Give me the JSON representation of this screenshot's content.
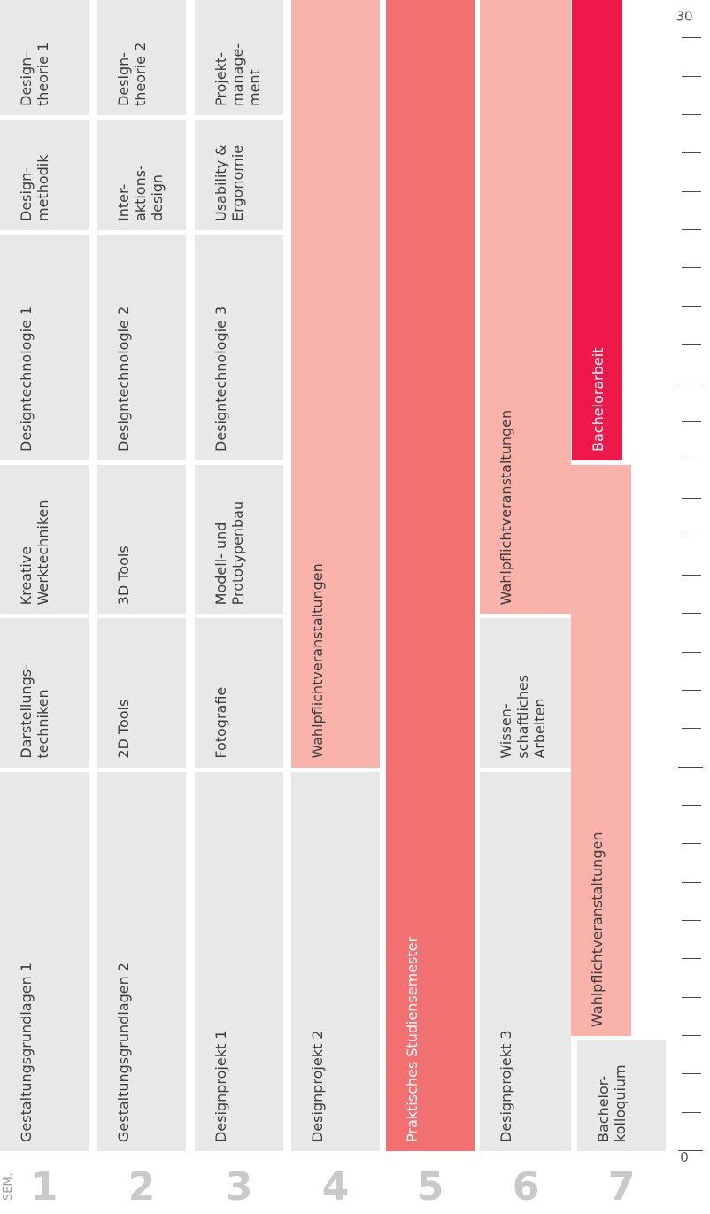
{
  "header": {
    "sem_label": "SEM."
  },
  "semesters": [
    {
      "num": "1",
      "modules": [
        {
          "label": "Gestaltungsgrundlagen 1",
          "style": "grey"
        },
        {
          "label": "Darstellungs-\ntechniken",
          "style": "grey"
        },
        {
          "label": "Kreative\nWerktechniken",
          "style": "grey"
        },
        {
          "label": "Designtechnologie 1",
          "style": "grey"
        },
        {
          "label": "Design-\nmethodik",
          "style": "grey"
        },
        {
          "label": "Design-\ntheorie 1",
          "style": "grey"
        }
      ]
    },
    {
      "num": "2",
      "modules": [
        {
          "label": "Gestaltungsgrundlagen 2",
          "style": "grey"
        },
        {
          "label": "2D Tools",
          "style": "grey"
        },
        {
          "label": "3D Tools",
          "style": "grey"
        },
        {
          "label": "Designtechnologie 2",
          "style": "grey"
        },
        {
          "label": "Inter-\naktions-\ndesign",
          "style": "grey"
        },
        {
          "label": "Design-\ntheorie 2",
          "style": "grey"
        }
      ]
    },
    {
      "num": "3",
      "modules": [
        {
          "label": "Designprojekt 1",
          "style": "grey"
        },
        {
          "label": "Fotografie",
          "style": "grey"
        },
        {
          "label": "Modell- und\nPrototypenbau",
          "style": "grey"
        },
        {
          "label": "Designtechnologie 3",
          "style": "grey"
        },
        {
          "label": "Usability &\nErgonomie",
          "style": "grey"
        },
        {
          "label": "Projekt-\nmanage-\nment",
          "style": "grey"
        }
      ]
    },
    {
      "num": "4",
      "modules": [
        {
          "label": "Designprojekt 2",
          "style": "grey"
        },
        {
          "label": "Wahlpflichtveranstaltungen",
          "style": "pink"
        }
      ]
    },
    {
      "num": "5",
      "modules": [
        {
          "label": "Praktisches Studiensemester",
          "style": "red"
        }
      ]
    },
    {
      "num": "6",
      "modules": [
        {
          "label": "Designprojekt 3",
          "style": "grey"
        },
        {
          "label": "Wissen-\nschaftliches\nArbeiten",
          "style": "grey"
        },
        {
          "label": "Wahlpflichtveranstaltungen",
          "style": "pink"
        }
      ]
    },
    {
      "num": "7",
      "modules": [
        {
          "label": "Bachelor-\nkolloquium",
          "style": "grey"
        },
        {
          "label": "Wahlpflichtveranstaltungen",
          "style": "pink"
        },
        {
          "label": "Bachelorarbeit",
          "style": "crimson"
        }
      ]
    }
  ],
  "chart_data": {
    "type": "table",
    "axis": {
      "min": 0,
      "max": 30,
      "labels": [
        "0",
        "30"
      ]
    },
    "rows": [
      {
        "semester": 1,
        "spans": [
          [
            0,
            10
          ],
          [
            10,
            14
          ],
          [
            14,
            18
          ],
          [
            18,
            24
          ],
          [
            24,
            27
          ],
          [
            27,
            30
          ]
        ]
      },
      {
        "semester": 2,
        "spans": [
          [
            0,
            10
          ],
          [
            10,
            14
          ],
          [
            14,
            18
          ],
          [
            18,
            24
          ],
          [
            24,
            27
          ],
          [
            27,
            30
          ]
        ]
      },
      {
        "semester": 3,
        "spans": [
          [
            0,
            10
          ],
          [
            10,
            14
          ],
          [
            14,
            18
          ],
          [
            18,
            24
          ],
          [
            24,
            27
          ],
          [
            27,
            30
          ]
        ]
      },
      {
        "semester": 4,
        "spans": [
          [
            0,
            10
          ],
          [
            10,
            30
          ]
        ]
      },
      {
        "semester": 5,
        "spans": [
          [
            0,
            30
          ]
        ]
      },
      {
        "semester": 6,
        "spans": [
          [
            0,
            10
          ],
          [
            10,
            14
          ],
          [
            14,
            30
          ]
        ]
      },
      {
        "semester": 7,
        "spans": [
          [
            0,
            3
          ],
          [
            3,
            18
          ],
          [
            18,
            30
          ]
        ]
      }
    ]
  }
}
